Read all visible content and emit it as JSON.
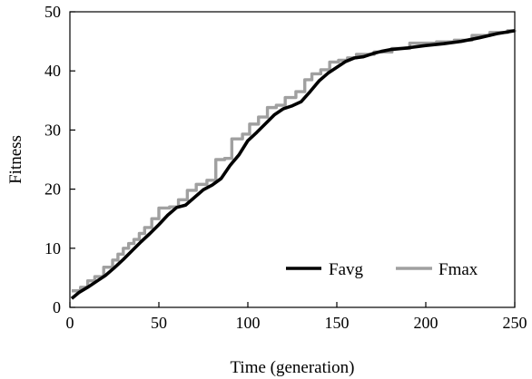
{
  "chart_data": {
    "type": "line",
    "title": "",
    "xlabel": "Time (generation)",
    "ylabel": "Fitness",
    "xlim": [
      0,
      250
    ],
    "ylim": [
      0,
      50
    ],
    "xticks": [
      0,
      50,
      100,
      150,
      200,
      250
    ],
    "yticks": [
      0,
      10,
      20,
      30,
      40,
      50
    ],
    "grid": false,
    "legend_position": "bottom-right",
    "series": [
      {
        "name": "Favg",
        "color": "#000000",
        "style": "smooth",
        "x": [
          1,
          5,
          10,
          15,
          20,
          25,
          30,
          35,
          40,
          45,
          50,
          55,
          60,
          65,
          70,
          75,
          80,
          85,
          90,
          95,
          100,
          105,
          110,
          115,
          120,
          125,
          130,
          135,
          140,
          145,
          150,
          155,
          160,
          165,
          170,
          175,
          180,
          190,
          200,
          210,
          220,
          230,
          240,
          250
        ],
        "y": [
          1.5,
          2.5,
          3.4,
          4.4,
          5.4,
          6.7,
          8.1,
          9.6,
          11.1,
          12.5,
          14.0,
          15.6,
          16.9,
          17.3,
          18.6,
          19.9,
          20.7,
          21.8,
          24.0,
          25.8,
          28.2,
          29.6,
          31.1,
          32.6,
          33.6,
          34.1,
          34.8,
          36.5,
          38.3,
          39.6,
          40.6,
          41.6,
          42.2,
          42.4,
          42.9,
          43.3,
          43.6,
          43.9,
          44.3,
          44.6,
          45.0,
          45.6,
          46.3,
          46.8
        ]
      },
      {
        "name": "Fmax",
        "color": "#a0a0a0",
        "style": "step",
        "x": [
          1,
          6,
          10,
          14,
          19,
          24,
          27,
          30,
          33,
          36,
          39,
          42,
          46,
          50,
          56,
          61,
          66,
          71,
          77,
          82,
          87,
          91,
          97,
          101,
          106,
          111,
          116,
          121,
          127,
          132,
          136,
          141,
          146,
          151,
          156,
          161,
          171,
          181,
          191,
          206,
          216,
          226,
          236,
          246,
          250
        ],
        "y": [
          2.8,
          3.4,
          4.5,
          5.2,
          6.8,
          8.0,
          9.0,
          10.0,
          10.8,
          11.5,
          12.5,
          13.5,
          15.0,
          16.8,
          17.0,
          18.2,
          19.8,
          20.8,
          21.5,
          25.0,
          25.2,
          28.5,
          29.3,
          31.0,
          32.2,
          33.8,
          34.2,
          35.5,
          36.5,
          38.5,
          39.5,
          40.2,
          41.5,
          41.8,
          42.2,
          42.8,
          43.2,
          43.8,
          44.7,
          44.9,
          45.2,
          46.0,
          46.5,
          46.8,
          46.9
        ]
      }
    ]
  }
}
